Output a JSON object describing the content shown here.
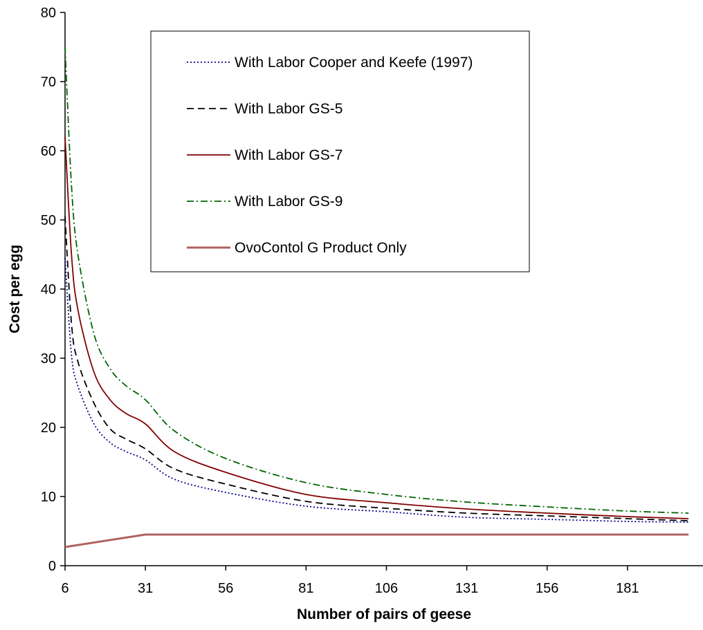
{
  "chart_data": {
    "type": "line",
    "title": "",
    "xlabel": "Number of pairs of geese",
    "ylabel": "Cost per egg",
    "xlim": [
      6,
      200
    ],
    "ylim": [
      0,
      80
    ],
    "x_ticks": [
      6,
      31,
      56,
      81,
      106,
      131,
      156,
      181
    ],
    "y_ticks": [
      0,
      10,
      20,
      30,
      40,
      50,
      60,
      70,
      80
    ],
    "legend_position": "top-center",
    "grid": false,
    "series": [
      {
        "name": "With Labor Cooper and Keefe (1997)",
        "color": "#00008b",
        "dash": "dotted",
        "points": [
          [
            6,
            44.5
          ],
          [
            8,
            30.5
          ],
          [
            10,
            26
          ],
          [
            15,
            20.5
          ],
          [
            20,
            17.8
          ],
          [
            25,
            16.5
          ],
          [
            31,
            15.3
          ],
          [
            40,
            12.5
          ],
          [
            56,
            10.6
          ],
          [
            81,
            8.6
          ],
          [
            106,
            7.8
          ],
          [
            131,
            7
          ],
          [
            156,
            6.7
          ],
          [
            181,
            6.4
          ],
          [
            200,
            6.3
          ]
        ]
      },
      {
        "name": "With Labor GS-5",
        "color": "#000000",
        "dash": "dashed",
        "points": [
          [
            6,
            50.5
          ],
          [
            8,
            35
          ],
          [
            10,
            29.5
          ],
          [
            15,
            23.5
          ],
          [
            20,
            19.8
          ],
          [
            25,
            18.3
          ],
          [
            31,
            16.9
          ],
          [
            40,
            14
          ],
          [
            56,
            11.8
          ],
          [
            81,
            9.3
          ],
          [
            106,
            8.3
          ],
          [
            131,
            7.6
          ],
          [
            156,
            7.2
          ],
          [
            181,
            6.8
          ],
          [
            200,
            6.5
          ]
        ]
      },
      {
        "name": "With Labor GS-7",
        "color": "#800000",
        "dash": "solid",
        "points": [
          [
            6,
            62
          ],
          [
            8,
            45
          ],
          [
            10,
            37
          ],
          [
            15,
            28
          ],
          [
            20,
            24
          ],
          [
            25,
            22
          ],
          [
            31,
            20.5
          ],
          [
            40,
            16.5
          ],
          [
            56,
            13.5
          ],
          [
            81,
            10.3
          ],
          [
            106,
            9.1
          ],
          [
            131,
            8.2
          ],
          [
            156,
            7.6
          ],
          [
            181,
            7.1
          ],
          [
            200,
            6.8
          ]
        ]
      },
      {
        "name": "With Labor GS-9",
        "color": "#006400",
        "dash": "dashdot",
        "points": [
          [
            6,
            75
          ],
          [
            8,
            55
          ],
          [
            10,
            45
          ],
          [
            15,
            33.5
          ],
          [
            20,
            28.5
          ],
          [
            25,
            26
          ],
          [
            31,
            24
          ],
          [
            40,
            19.5
          ],
          [
            56,
            15.5
          ],
          [
            81,
            12
          ],
          [
            106,
            10.3
          ],
          [
            131,
            9.2
          ],
          [
            156,
            8.5
          ],
          [
            181,
            7.9
          ],
          [
            200,
            7.6
          ]
        ]
      },
      {
        "name": "OvoContol G Product Only",
        "color": "#b06060",
        "dash": "solid",
        "points": [
          [
            6,
            2.7
          ],
          [
            31,
            4.5
          ],
          [
            200,
            4.5
          ]
        ]
      }
    ]
  }
}
